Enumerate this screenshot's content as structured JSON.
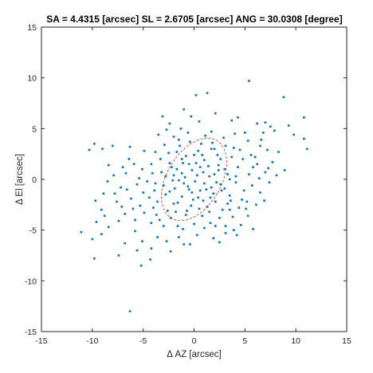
{
  "chart_data": {
    "type": "scatter",
    "title": "SA = 4.4315 [arcsec]  SL = 2.6705 [arcsec]  ANG = 30.0308 [degree]",
    "xlabel": "Δ AZ [arcsec]",
    "ylabel": "Δ El [arcsec]",
    "xlim": [
      -15,
      15
    ],
    "ylim": [
      -15,
      15
    ],
    "xticks": [
      "-15",
      "-10",
      "-5",
      "0",
      "5",
      "10",
      "15"
    ],
    "yticks": [
      "-15",
      "-10",
      "-5",
      "0",
      "5",
      "10",
      "15"
    ],
    "grid": false,
    "colors": {
      "points": "#0072bd",
      "ellipse": "#d9534f"
    },
    "ellipse": {
      "center": [
        0,
        0
      ],
      "semi_axis_a": 4.4315,
      "semi_axis_b": 2.6705,
      "angle_deg": 30.0308
    },
    "points": [
      [
        0.2,
        8.3
      ],
      [
        1.3,
        8.5
      ],
      [
        5.4,
        9.7
      ],
      [
        8.8,
        8.1
      ],
      [
        10.8,
        6.1
      ],
      [
        9.3,
        5.3
      ],
      [
        11.1,
        3.0
      ],
      [
        10.8,
        4.0
      ],
      [
        9.8,
        4.4
      ],
      [
        7.9,
        4.8
      ],
      [
        7.5,
        5.2
      ],
      [
        7.0,
        5.6
      ],
      [
        6.2,
        5.5
      ],
      [
        6.8,
        4.6
      ],
      [
        4.3,
        6.1
      ],
      [
        -1.0,
        6.9
      ],
      [
        -3.1,
        6.2
      ],
      [
        -3.5,
        4.4
      ],
      [
        -2.7,
        4.9
      ],
      [
        -2.4,
        5.5
      ],
      [
        -1.5,
        3.9
      ],
      [
        -1.7,
        2.7
      ],
      [
        -1.3,
        5.0
      ],
      [
        -0.3,
        6.2
      ],
      [
        0.5,
        5.7
      ],
      [
        1.7,
        4.7
      ],
      [
        3.7,
        5.8
      ],
      [
        4.0,
        4.5
      ],
      [
        5.3,
        3.8
      ],
      [
        6.5,
        3.3
      ],
      [
        7.2,
        2.9
      ],
      [
        8.3,
        2.7
      ],
      [
        8.9,
        0.9
      ],
      [
        7.7,
        1.7
      ],
      [
        7.0,
        0.7
      ],
      [
        6.2,
        1.5
      ],
      [
        5.4,
        0.5
      ],
      [
        4.5,
        2.9
      ],
      [
        3.7,
        2.2
      ],
      [
        3.1,
        3.3
      ],
      [
        2.3,
        2.4
      ],
      [
        1.7,
        3.0
      ],
      [
        1.0,
        1.9
      ],
      [
        0.0,
        2.4
      ],
      [
        -0.5,
        1.5
      ],
      [
        -1.7,
        1.0
      ],
      [
        -2.4,
        1.6
      ],
      [
        -3.3,
        2.0
      ],
      [
        -4.2,
        1.5
      ],
      [
        -5.1,
        1.0
      ],
      [
        -5.6,
        -0.5
      ],
      [
        -4.6,
        -0.2
      ],
      [
        -3.8,
        -0.4
      ],
      [
        -2.8,
        0.3
      ],
      [
        -2.1,
        -0.1
      ],
      [
        -1.2,
        0.6
      ],
      [
        -0.6,
        -0.7
      ],
      [
        0.3,
        0.4
      ],
      [
        1.0,
        -0.4
      ],
      [
        2.0,
        0.5
      ],
      [
        2.6,
        -0.5
      ],
      [
        3.3,
        0.5
      ],
      [
        4.1,
        -0.3
      ],
      [
        4.9,
        -1.1
      ],
      [
        5.7,
        -0.6
      ],
      [
        6.5,
        -1.3
      ],
      [
        6.1,
        -2.5
      ],
      [
        5.2,
        -2.2
      ],
      [
        4.4,
        -2.8
      ],
      [
        3.6,
        -2.1
      ],
      [
        2.8,
        -3.0
      ],
      [
        2.1,
        -2.2
      ],
      [
        1.3,
        -2.7
      ],
      [
        0.4,
        -1.8
      ],
      [
        -0.3,
        -2.6
      ],
      [
        -1.2,
        -1.7
      ],
      [
        -2.0,
        -2.4
      ],
      [
        -2.8,
        -1.5
      ],
      [
        -3.6,
        -2.2
      ],
      [
        -4.4,
        -1.8
      ],
      [
        -5.3,
        -2.6
      ],
      [
        -6.2,
        -1.9
      ],
      [
        -7.1,
        -2.7
      ],
      [
        -7.8,
        -1.4
      ],
      [
        -8.5,
        -0.2
      ],
      [
        -7.9,
        0.4
      ],
      [
        -7.2,
        -0.8
      ],
      [
        -6.7,
        0.6
      ],
      [
        -6.4,
        2.0
      ],
      [
        -5.9,
        1.5
      ],
      [
        -4.9,
        2.8
      ],
      [
        -6.3,
        3.2
      ],
      [
        -8.0,
        3.3
      ],
      [
        -9.8,
        3.5
      ],
      [
        -9.0,
        3.0
      ],
      [
        -10.3,
        2.9
      ],
      [
        -8.4,
        1.4
      ],
      [
        -8.9,
        -1.4
      ],
      [
        -9.7,
        -2.1
      ],
      [
        -9.1,
        -3.0
      ],
      [
        -9.6,
        -4.2
      ],
      [
        -8.4,
        -4.7
      ],
      [
        -7.4,
        -4.1
      ],
      [
        -6.8,
        -3.4
      ],
      [
        -5.8,
        -4.0
      ],
      [
        -4.9,
        -3.3
      ],
      [
        -4.2,
        -4.3
      ],
      [
        -3.7,
        -3.5
      ],
      [
        -3.0,
        -4.6
      ],
      [
        -2.3,
        -3.8
      ],
      [
        -1.6,
        -4.6
      ],
      [
        -0.8,
        -3.5
      ],
      [
        0.0,
        -4.4
      ],
      [
        0.8,
        -3.6
      ],
      [
        1.6,
        -4.3
      ],
      [
        2.5,
        -3.8
      ],
      [
        3.1,
        -4.6
      ],
      [
        3.8,
        -3.7
      ],
      [
        4.6,
        -4.5
      ],
      [
        5.3,
        -3.6
      ],
      [
        5.8,
        -4.9
      ],
      [
        4.2,
        -5.5
      ],
      [
        3.1,
        -5.3
      ],
      [
        1.9,
        -5.8
      ],
      [
        0.3,
        -5.5
      ],
      [
        -0.4,
        -6.4
      ],
      [
        -1.5,
        -5.7
      ],
      [
        -2.7,
        -6.1
      ],
      [
        -3.6,
        -5.7
      ],
      [
        -4.2,
        -6.8
      ],
      [
        -5.1,
        -6.1
      ],
      [
        -5.6,
        -7.0
      ],
      [
        -6.8,
        -6.3
      ],
      [
        -7.4,
        -7.5
      ],
      [
        -5.2,
        -8.5
      ],
      [
        -4.3,
        -7.9
      ],
      [
        -9.8,
        -7.8
      ],
      [
        -11.1,
        -5.2
      ],
      [
        -10.0,
        -5.9
      ],
      [
        -9.1,
        -5.4
      ],
      [
        -6.3,
        -13.0
      ],
      [
        -2.3,
        -7.1
      ],
      [
        -1.0,
        -6.4
      ],
      [
        2.5,
        -6.2
      ],
      [
        1.2,
        -1.0
      ],
      [
        -0.2,
        0.9
      ],
      [
        0.6,
        1.2
      ],
      [
        1.5,
        0.3
      ],
      [
        -1.0,
        -0.4
      ],
      [
        -1.9,
        -0.9
      ],
      [
        2.4,
        1.4
      ],
      [
        3.0,
        1.0
      ],
      [
        0.4,
        2.8
      ],
      [
        -0.8,
        2.3
      ],
      [
        1.9,
        -1.4
      ],
      [
        2.7,
        -1.1
      ],
      [
        -0.2,
        -1.3
      ],
      [
        0.9,
        0.7
      ],
      [
        1.8,
        3.6
      ],
      [
        -2.5,
        2.6
      ],
      [
        -3.2,
        0.7
      ],
      [
        -3.9,
        -1.1
      ],
      [
        3.5,
        -1.6
      ],
      [
        4.3,
        1.2
      ],
      [
        4.8,
        2.0
      ],
      [
        5.6,
        2.4
      ],
      [
        -1.4,
        3.3
      ],
      [
        2.9,
        4.1
      ],
      [
        0.7,
        3.5
      ],
      [
        -0.4,
        3.7
      ],
      [
        3.9,
        3.1
      ],
      [
        5.0,
        4.6
      ],
      [
        6.0,
        2.2
      ],
      [
        7.4,
        -0.3
      ],
      [
        8.1,
        0.4
      ],
      [
        6.9,
        -2.1
      ],
      [
        -5.0,
        -1.3
      ],
      [
        -6.0,
        -2.9
      ],
      [
        -7.6,
        -2.2
      ],
      [
        -4.0,
        -2.8
      ],
      [
        -2.6,
        -3.1
      ],
      [
        -1.8,
        -3.2
      ],
      [
        0.5,
        -2.9
      ],
      [
        1.5,
        -3.2
      ],
      [
        3.5,
        -3.0
      ],
      [
        4.7,
        -2.0
      ],
      [
        -3.0,
        -0.6
      ],
      [
        -0.9,
        0.2
      ],
      [
        0.1,
        -0.2
      ],
      [
        1.4,
        1.3
      ],
      [
        2.2,
        -0.3
      ],
      [
        -2.2,
        1.2
      ],
      [
        1.6,
        -1.8
      ],
      [
        -1.1,
        1.6
      ],
      [
        0.9,
        -2.1
      ],
      [
        2.6,
        2.0
      ],
      [
        -1.6,
        -2.3
      ],
      [
        -0.5,
        -1.0
      ],
      [
        3.0,
        -0.9
      ],
      [
        4.1,
        0.3
      ],
      [
        -4.1,
        0.6
      ],
      [
        -5.4,
        0.1
      ],
      [
        -6.6,
        -1.0
      ],
      [
        -7.0,
        1.2
      ],
      [
        -8.8,
        -3.6
      ],
      [
        -5.8,
        -5.1
      ],
      [
        -3.4,
        -4.0
      ],
      [
        -1.1,
        -4.9
      ],
      [
        1.0,
        -4.8
      ],
      [
        2.1,
        -4.6
      ],
      [
        3.9,
        -5.0
      ],
      [
        5.1,
        -2.9
      ],
      [
        6.4,
        0.1
      ],
      [
        5.8,
        1.2
      ],
      [
        7.3,
        1.1
      ],
      [
        6.6,
        3.9
      ],
      [
        2.1,
        6.5
      ],
      [
        -0.6,
        4.6
      ],
      [
        -2.0,
        4.2
      ],
      [
        1.1,
        4.3
      ],
      [
        -2.9,
        3.4
      ],
      [
        -3.8,
        2.7
      ],
      [
        -1.2,
        2.0
      ],
      [
        0.2,
        1.6
      ],
      [
        0.6,
        -1.1
      ],
      [
        -0.1,
        -2.0
      ],
      [
        1.7,
        -0.8
      ],
      [
        -2.4,
        -1.2
      ],
      [
        -1.5,
        -0.1
      ],
      [
        3.3,
        -2.4
      ],
      [
        2.0,
        3.0
      ],
      [
        0.8,
        2.4
      ],
      [
        3.5,
        0.0
      ],
      [
        2.4,
        0.9
      ],
      [
        -0.7,
        -3.1
      ],
      [
        -2.0,
        0.4
      ]
    ]
  }
}
